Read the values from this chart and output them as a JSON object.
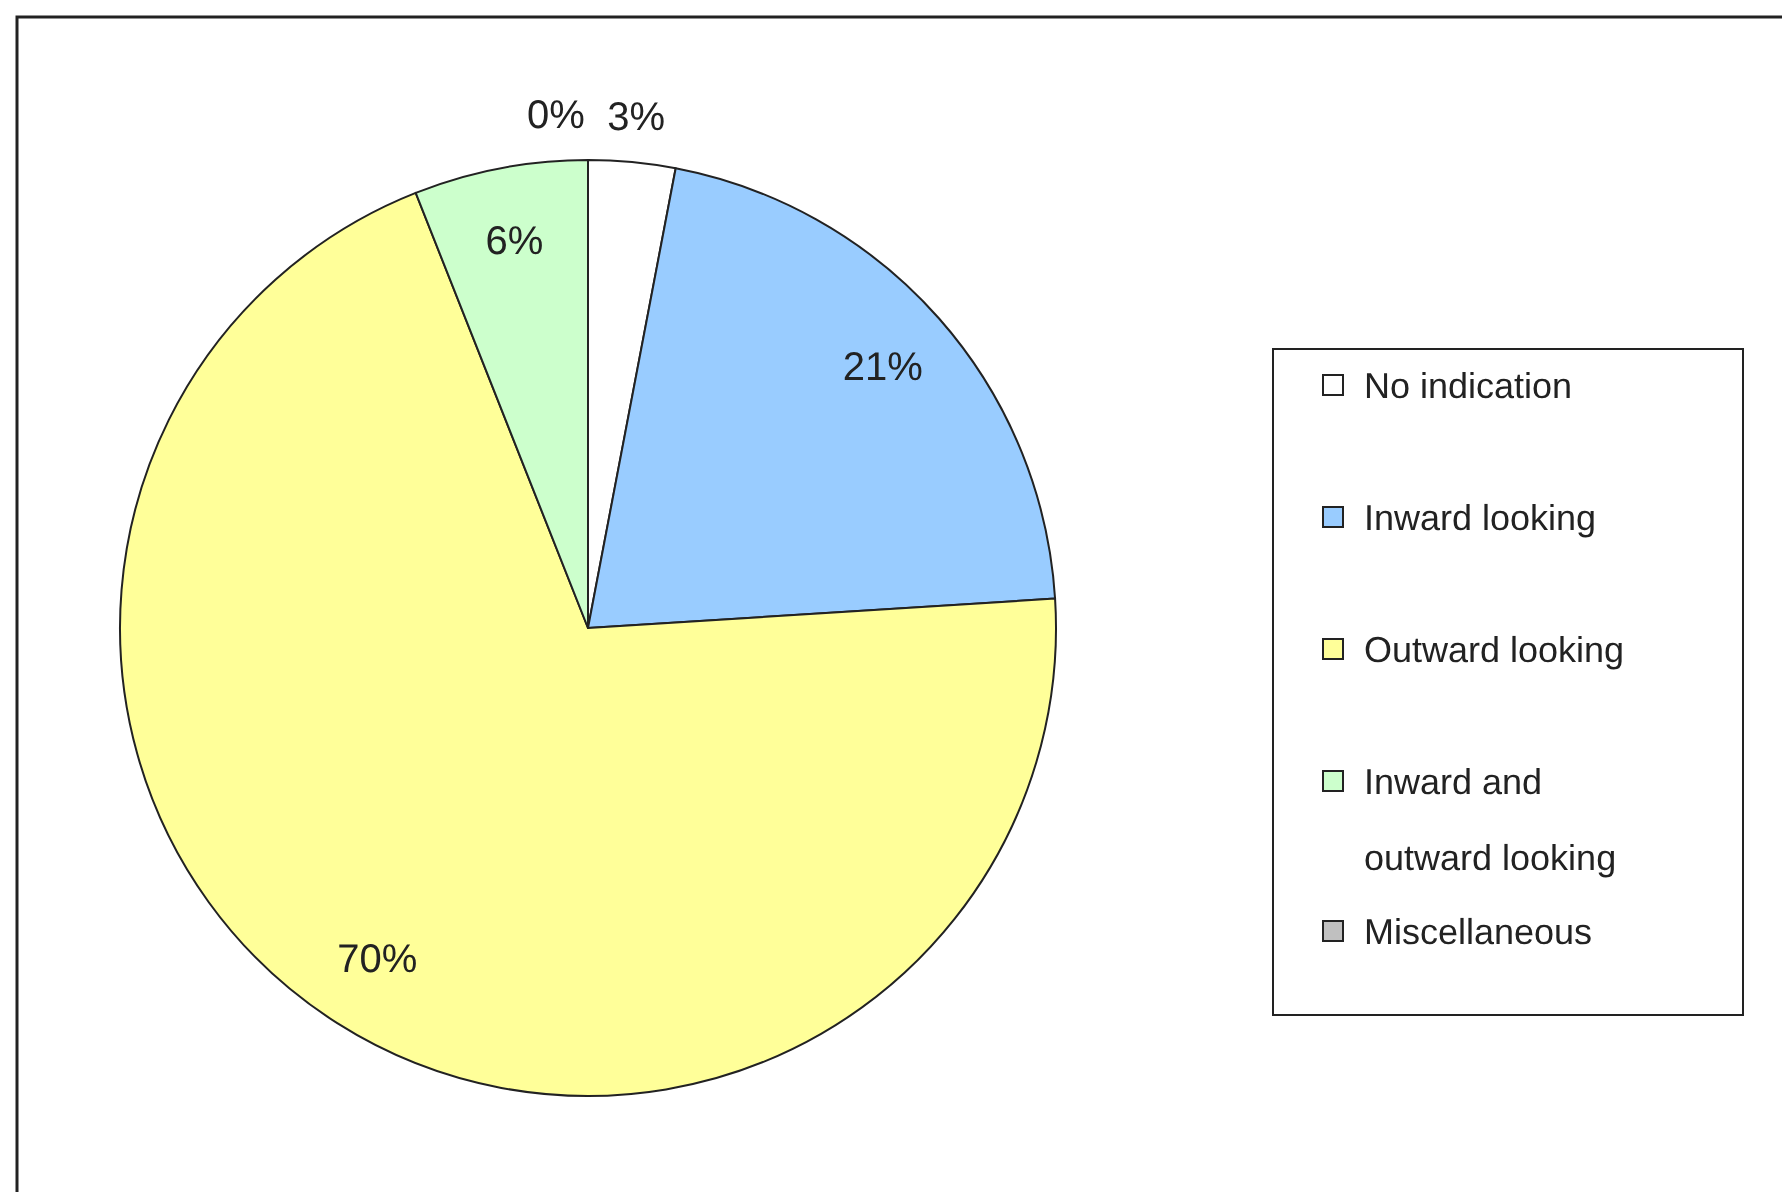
{
  "chart_data": {
    "type": "pie",
    "categories": [
      "No indication",
      "Inward looking",
      "Outward looking",
      "Inward and outward looking",
      "Miscellaneous"
    ],
    "values": [
      3,
      21,
      70,
      6,
      0
    ],
    "colors": [
      "#ffffff",
      "#99ccff",
      "#ffff99",
      "#ccffcc",
      "#c0c0c0"
    ],
    "value_labels": [
      "3%",
      "21%",
      "70%",
      "6%",
      "0%"
    ],
    "legend": "right"
  }
}
